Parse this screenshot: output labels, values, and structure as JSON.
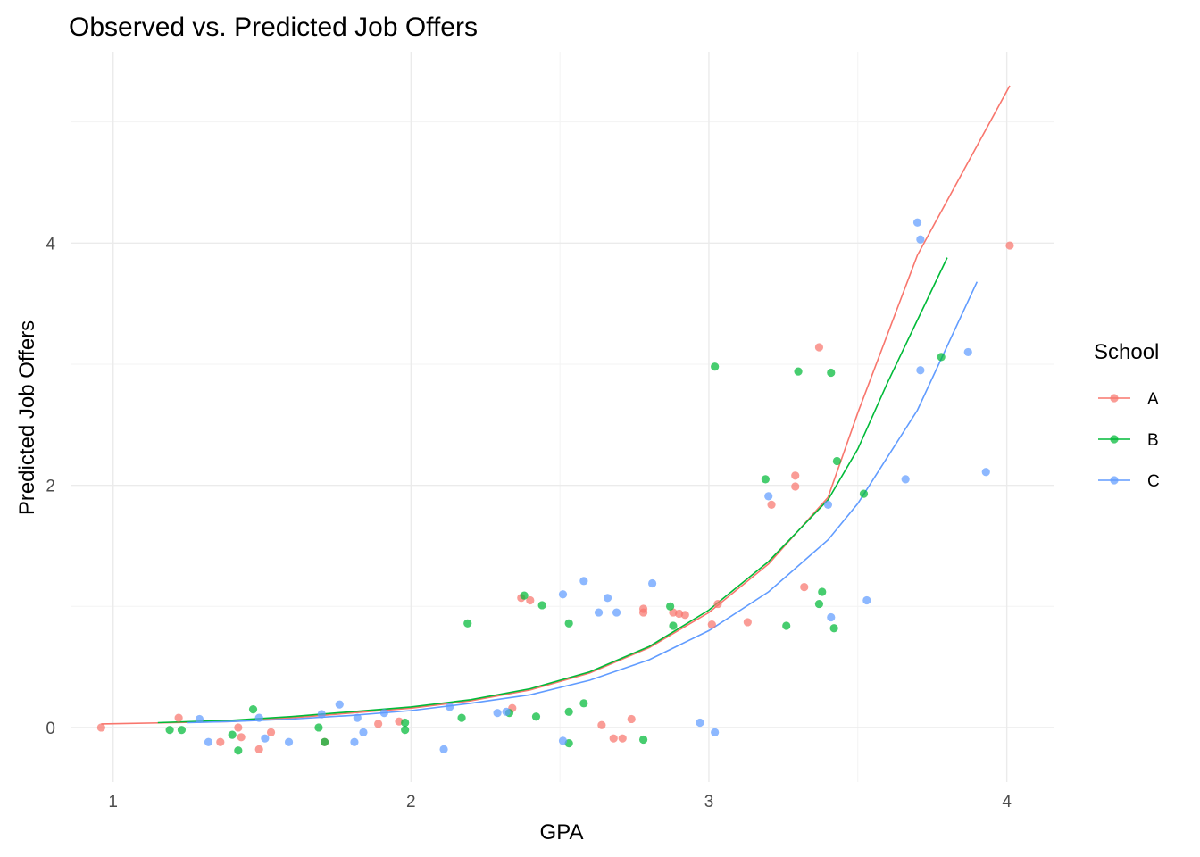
{
  "chart_data": {
    "type": "scatter",
    "title": "Observed vs. Predicted Job Offers",
    "xlabel": "GPA",
    "ylabel": "Predicted Job Offers",
    "xlim": [
      0.86,
      4.16
    ],
    "ylim": [
      -0.45,
      5.58
    ],
    "xticks": [
      1,
      2,
      3,
      4
    ],
    "yticks": [
      0,
      2,
      4
    ],
    "grid": true,
    "legend": {
      "title": "School",
      "position": "right"
    },
    "series": [
      {
        "name": "A",
        "color": "#F8766D",
        "points": [
          [
            0.96,
            0.0
          ],
          [
            1.22,
            0.08
          ],
          [
            1.36,
            -0.12
          ],
          [
            1.42,
            0.0
          ],
          [
            1.43,
            -0.08
          ],
          [
            1.49,
            -0.18
          ],
          [
            1.53,
            -0.04
          ],
          [
            1.71,
            -0.12
          ],
          [
            1.89,
            0.03
          ],
          [
            1.96,
            0.05
          ],
          [
            2.34,
            0.16
          ],
          [
            2.37,
            1.07
          ],
          [
            2.4,
            1.05
          ],
          [
            2.64,
            0.02
          ],
          [
            2.68,
            -0.09
          ],
          [
            2.71,
            -0.09
          ],
          [
            2.74,
            0.07
          ],
          [
            2.78,
            0.95
          ],
          [
            2.78,
            0.98
          ],
          [
            2.88,
            0.95
          ],
          [
            2.9,
            0.94
          ],
          [
            2.92,
            0.93
          ],
          [
            3.01,
            0.85
          ],
          [
            3.03,
            1.02
          ],
          [
            3.13,
            0.87
          ],
          [
            3.29,
            1.99
          ],
          [
            3.29,
            2.08
          ],
          [
            3.21,
            1.84
          ],
          [
            3.32,
            1.16
          ],
          [
            3.37,
            3.14
          ],
          [
            4.01,
            3.98
          ]
        ],
        "fit": [
          [
            0.96,
            0.03
          ],
          [
            1.2,
            0.04
          ],
          [
            1.4,
            0.05
          ],
          [
            1.6,
            0.08
          ],
          [
            1.8,
            0.12
          ],
          [
            2.0,
            0.16
          ],
          [
            2.2,
            0.22
          ],
          [
            2.4,
            0.31
          ],
          [
            2.6,
            0.45
          ],
          [
            2.8,
            0.66
          ],
          [
            3.0,
            0.95
          ],
          [
            3.2,
            1.35
          ],
          [
            3.4,
            1.9
          ],
          [
            3.5,
            2.6
          ],
          [
            3.7,
            3.9
          ],
          [
            4.01,
            5.3
          ]
        ]
      },
      {
        "name": "B",
        "color": "#00BA38",
        "points": [
          [
            1.19,
            -0.02
          ],
          [
            1.23,
            -0.02
          ],
          [
            1.4,
            -0.06
          ],
          [
            1.42,
            -0.19
          ],
          [
            1.47,
            0.15
          ],
          [
            1.69,
            0.0
          ],
          [
            1.71,
            -0.12
          ],
          [
            1.98,
            0.04
          ],
          [
            1.98,
            -0.02
          ],
          [
            2.17,
            0.08
          ],
          [
            2.19,
            0.86
          ],
          [
            2.33,
            0.12
          ],
          [
            2.38,
            1.09
          ],
          [
            2.42,
            0.09
          ],
          [
            2.44,
            1.01
          ],
          [
            2.53,
            0.13
          ],
          [
            2.53,
            0.86
          ],
          [
            2.53,
            -0.13
          ],
          [
            2.58,
            0.2
          ],
          [
            2.78,
            -0.1
          ],
          [
            2.87,
            1.0
          ],
          [
            2.88,
            0.84
          ],
          [
            3.02,
            2.98
          ],
          [
            3.19,
            2.05
          ],
          [
            3.26,
            0.84
          ],
          [
            3.3,
            2.94
          ],
          [
            3.37,
            1.02
          ],
          [
            3.38,
            1.12
          ],
          [
            3.41,
            2.93
          ],
          [
            3.42,
            0.82
          ],
          [
            3.43,
            2.2
          ],
          [
            3.52,
            1.93
          ],
          [
            3.78,
            3.06
          ]
        ],
        "fit": [
          [
            1.15,
            0.04
          ],
          [
            1.4,
            0.06
          ],
          [
            1.6,
            0.09
          ],
          [
            1.8,
            0.13
          ],
          [
            2.0,
            0.17
          ],
          [
            2.2,
            0.23
          ],
          [
            2.4,
            0.32
          ],
          [
            2.6,
            0.46
          ],
          [
            2.8,
            0.67
          ],
          [
            3.0,
            0.97
          ],
          [
            3.2,
            1.37
          ],
          [
            3.4,
            1.88
          ],
          [
            3.5,
            2.3
          ],
          [
            3.6,
            2.85
          ],
          [
            3.8,
            3.88
          ]
        ]
      },
      {
        "name": "C",
        "color": "#619CFF",
        "points": [
          [
            1.29,
            0.07
          ],
          [
            1.32,
            -0.12
          ],
          [
            1.49,
            0.08
          ],
          [
            1.51,
            -0.09
          ],
          [
            1.59,
            -0.12
          ],
          [
            1.7,
            0.11
          ],
          [
            1.76,
            0.19
          ],
          [
            1.81,
            -0.12
          ],
          [
            1.82,
            0.08
          ],
          [
            1.84,
            -0.04
          ],
          [
            1.91,
            0.12
          ],
          [
            2.11,
            -0.18
          ],
          [
            2.13,
            0.17
          ],
          [
            2.29,
            0.12
          ],
          [
            2.32,
            0.13
          ],
          [
            2.51,
            1.1
          ],
          [
            2.51,
            -0.11
          ],
          [
            2.58,
            1.21
          ],
          [
            2.63,
            0.95
          ],
          [
            2.66,
            1.07
          ],
          [
            2.69,
            0.95
          ],
          [
            2.81,
            1.19
          ],
          [
            2.97,
            0.04
          ],
          [
            3.02,
            -0.04
          ],
          [
            3.2,
            1.91
          ],
          [
            3.4,
            1.84
          ],
          [
            3.41,
            0.91
          ],
          [
            3.53,
            1.05
          ],
          [
            3.66,
            2.05
          ],
          [
            3.7,
            4.17
          ],
          [
            3.71,
            4.03
          ],
          [
            3.71,
            2.95
          ],
          [
            3.87,
            3.1
          ],
          [
            3.93,
            2.11
          ]
        ],
        "fit": [
          [
            1.25,
            0.04
          ],
          [
            1.4,
            0.05
          ],
          [
            1.6,
            0.07
          ],
          [
            1.8,
            0.1
          ],
          [
            2.0,
            0.14
          ],
          [
            2.2,
            0.2
          ],
          [
            2.4,
            0.27
          ],
          [
            2.6,
            0.39
          ],
          [
            2.8,
            0.56
          ],
          [
            3.0,
            0.8
          ],
          [
            3.2,
            1.12
          ],
          [
            3.4,
            1.55
          ],
          [
            3.5,
            1.85
          ],
          [
            3.7,
            2.62
          ],
          [
            3.9,
            3.68
          ]
        ]
      }
    ]
  }
}
